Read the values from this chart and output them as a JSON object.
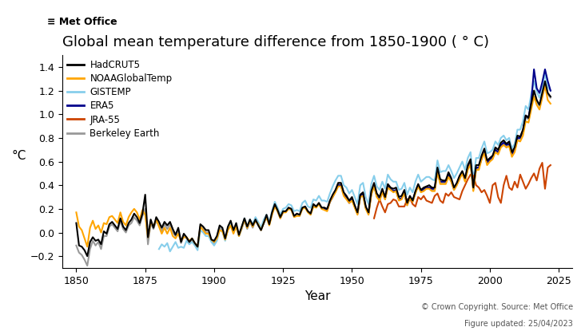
{
  "title": "Global mean temperature difference from 1850-1900 ( ° C)",
  "ylabel": "°C",
  "xlabel": "Year",
  "copyright_text": "© Crown Copyright. Source: Met Office",
  "updated_text": "Figure updated: 25/04/2023",
  "logo_text": "≡ Met Office",
  "ylim": [
    -0.3,
    1.5
  ],
  "yticks": [
    -0.2,
    0.0,
    0.2,
    0.4,
    0.6,
    0.8,
    1.0,
    1.2,
    1.4
  ],
  "xlim": [
    1845,
    2030
  ],
  "xticks": [
    1850,
    1875,
    1900,
    1925,
    1950,
    1975,
    2000,
    2025
  ],
  "series": {
    "HadCRUT5": {
      "color": "#000000",
      "linewidth": 1.5,
      "zorder": 5
    },
    "NOAAGlobalTemp": {
      "color": "#FFA500",
      "linewidth": 1.5,
      "zorder": 4
    },
    "GISTEMP": {
      "color": "#87CEEB",
      "linewidth": 1.5,
      "zorder": 3
    },
    "ERA5": {
      "color": "#00008B",
      "linewidth": 1.5,
      "zorder": 3
    },
    "JRA-55": {
      "color": "#CC4400",
      "linewidth": 1.5,
      "zorder": 3
    },
    "Berkeley Earth": {
      "color": "#999999",
      "linewidth": 1.5,
      "zorder": 2
    }
  },
  "background_color": "#ffffff",
  "grid": false
}
